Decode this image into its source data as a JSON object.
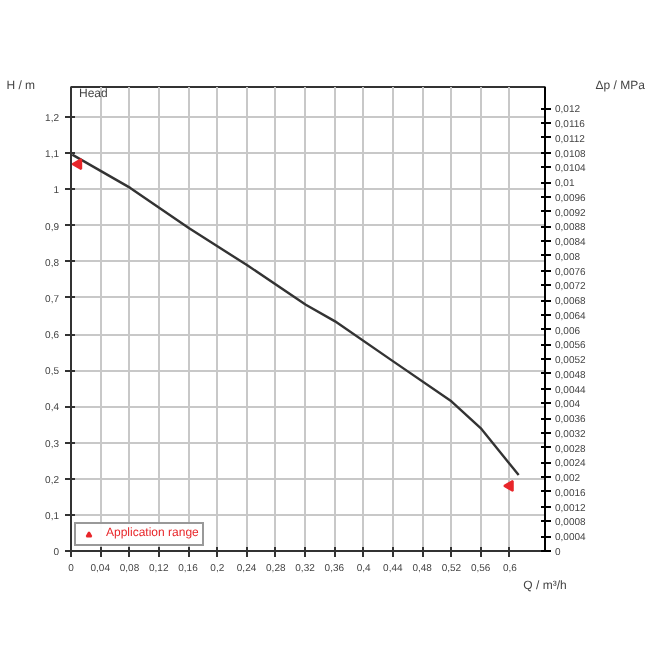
{
  "chart_data": {
    "type": "line",
    "xlabel": "Q / m³/h",
    "ylabel": "H / m",
    "y2label": "Δp / MPa",
    "annotations": [
      "Head"
    ],
    "x": [
      0.0017,
      0.081,
      0.161,
      0.241,
      0.321,
      0.361,
      0.44,
      0.52,
      0.56,
      0.612
    ],
    "series": [
      {
        "color": "#333333",
        "values": [
          1.096,
          1.004,
          0.893,
          0.79,
          0.681,
          0.635,
          0.525,
          0.414,
          0.34,
          0.21
        ]
      },
      {
        "name": "Application range",
        "type": "scatter",
        "marker": "triangle",
        "color": "#e8262a",
        "x": [
          0.01,
          0.6
        ],
        "values": [
          1.07,
          0.18
        ]
      }
    ],
    "legend": "bottom left",
    "grid": true,
    "line_style": "solid",
    "xlim": [
      0,
      0.648
    ],
    "ylim": [
      0,
      1.283
    ],
    "y2lim": [
      0,
      0.01258
    ],
    "xticks": [
      0,
      {
        "value": 0.04,
        "label": "0,04"
      },
      {
        "value": 0.08,
        "label": "0,08"
      },
      {
        "value": 0.12,
        "label": "0,12"
      },
      {
        "value": 0.16,
        "label": "0,16"
      },
      {
        "value": 0.2,
        "label": "0,2"
      },
      {
        "value": 0.24,
        "label": "0,24"
      },
      {
        "value": 0.28,
        "label": "0,28"
      },
      {
        "value": 0.32,
        "label": "0,32"
      },
      {
        "value": 0.36,
        "label": "0,36"
      },
      {
        "value": 0.4,
        "label": "0,4"
      },
      {
        "value": 0.44,
        "label": "0,44"
      },
      {
        "value": 0.48,
        "label": "0,48"
      },
      {
        "value": 0.52,
        "label": "0,52"
      },
      {
        "value": 0.56,
        "label": "0,56"
      },
      {
        "value": 0.6,
        "label": "0,6"
      }
    ],
    "yticks": [
      0,
      {
        "value": 0.1,
        "label": "0,1"
      },
      {
        "value": 0.2,
        "label": "0,2"
      },
      {
        "value": 0.3,
        "label": "0,3"
      },
      {
        "value": 0.4,
        "label": "0,4"
      },
      {
        "value": 0.5,
        "label": "0,5"
      },
      {
        "value": 0.6,
        "label": "0,6"
      },
      {
        "value": 0.7,
        "label": "0,7"
      },
      {
        "value": 0.8,
        "label": "0,8"
      },
      {
        "value": 0.9,
        "label": "0,9"
      },
      1,
      {
        "value": 1.1,
        "label": "1,1"
      },
      {
        "value": 1.2,
        "label": "1,2"
      }
    ],
    "y2ticks": [
      0,
      {
        "value": 0.0004,
        "label": "0,0004"
      },
      {
        "value": 0.0008,
        "label": "0,0008"
      },
      {
        "value": 0.0012,
        "label": "0,0012"
      },
      {
        "value": 0.0016,
        "label": "0,0016"
      },
      {
        "value": 0.002,
        "label": "0,002"
      },
      {
        "value": 0.0024,
        "label": "0,0024"
      },
      {
        "value": 0.0028,
        "label": "0,0028"
      },
      {
        "value": 0.0032,
        "label": "0,0032"
      },
      {
        "value": 0.0036,
        "label": "0,0036"
      },
      {
        "value": 0.004,
        "label": "0,004"
      },
      {
        "value": 0.0044,
        "label": "0,0044"
      },
      {
        "value": 0.0048,
        "label": "0,0048"
      },
      {
        "value": 0.0052,
        "label": "0,0052"
      },
      {
        "value": 0.0056,
        "label": "0,0056"
      },
      {
        "value": 0.006,
        "label": "0,006"
      },
      {
        "value": 0.0064,
        "label": "0,0064"
      },
      {
        "value": 0.0068,
        "label": "0,0068"
      },
      {
        "value": 0.0072,
        "label": "0,0072"
      },
      {
        "value": 0.0076,
        "label": "0,0076"
      },
      {
        "value": 0.008,
        "label": "0,008"
      },
      {
        "value": 0.0084,
        "label": "0,0084"
      },
      {
        "value": 0.0088,
        "label": "0,0088"
      },
      {
        "value": 0.0092,
        "label": "0,0092"
      },
      {
        "value": 0.0096,
        "label": "0,0096"
      },
      {
        "value": 0.01,
        "label": "0,01"
      },
      {
        "value": 0.0104,
        "label": "0,0104"
      },
      {
        "value": 0.0108,
        "label": "0,0108"
      },
      {
        "value": 0.0112,
        "label": "0,0112"
      },
      {
        "value": 0.0116,
        "label": "0,0116"
      },
      {
        "value": 0.012,
        "label": "0,012"
      }
    ]
  }
}
